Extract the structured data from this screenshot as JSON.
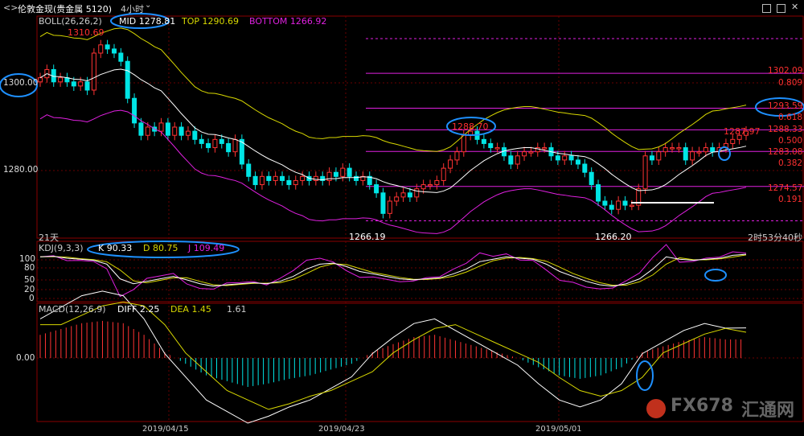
{
  "header": {
    "nav_icon": "back-forward-icon",
    "instrument": "伦敦金现(贵金属 5120)",
    "period": "4小时",
    "dropdown_icon": "chevron-down-icon"
  },
  "boll": {
    "label": "BOLL(26,26,2)",
    "mid": "MID 1278.81",
    "top": "TOP 1290.69",
    "bottom": "BOTTOM 1266.92"
  },
  "price_axis": {
    "ticks": [
      "1300.00",
      "1280.00"
    ]
  },
  "price_annotations": {
    "high": "1310.69",
    "peak_mid": "1288.70",
    "low1": "1266.19",
    "low2": "1266.20",
    "last": "1287.97",
    "range": "21天",
    "countdown": "2时53分40秒"
  },
  "fib_levels": [
    {
      "price": "1302.09",
      "ratio": "0.809"
    },
    {
      "price": "1293.59",
      "ratio": "0.618"
    },
    {
      "price": "1288.33",
      "ratio": "0.500"
    },
    {
      "price": "1283.08",
      "ratio": "0.382"
    },
    {
      "price": "1274.57",
      "ratio": "0.191"
    }
  ],
  "kdj": {
    "label": "KDJ(9,3,3)",
    "k": "K 90.33",
    "d": "D 80.75",
    "j": "J 109.49",
    "ticks": [
      "100",
      "80",
      "50",
      "20",
      "0"
    ]
  },
  "macd": {
    "label": "MACD(12,26,9)",
    "diff": "DIFF 2.25",
    "dea": "DEA 1.45",
    "value": "1.61",
    "zero_tick": "0.00"
  },
  "x_axis": {
    "dates": [
      "2019/04/15",
      "2019/04/23",
      "2019/05/01"
    ]
  },
  "watermark": {
    "brand": "FX678",
    "cn": "汇通网"
  },
  "colors": {
    "bull": "#ff3333",
    "bear": "#00e5e5",
    "mid": "#ffffff",
    "upper": "#d8d800",
    "lower": "#e020e0",
    "fib": "#e020e0",
    "annot": "#1e90ff"
  },
  "chart_data": {
    "type": "candlestick",
    "title": "伦敦金现(贵金属 5120) 4小时",
    "series": [
      {
        "name": "price_close",
        "values": [
          1301,
          1303,
          1300,
          1301,
          1300,
          1299,
          1300,
          1298,
          1307,
          1309,
          1308,
          1307,
          1305,
          1296,
          1290,
          1287,
          1289,
          1288,
          1290,
          1287,
          1289,
          1287,
          1288,
          1286,
          1285,
          1284,
          1286,
          1285,
          1283,
          1286,
          1280,
          1277,
          1275,
          1277,
          1276,
          1277,
          1276,
          1275,
          1276,
          1277,
          1276,
          1277,
          1276,
          1278,
          1277,
          1279,
          1277,
          1276,
          1277,
          1275,
          1273,
          1268,
          1271,
          1272,
          1273,
          1272,
          1274,
          1275,
          1275,
          1276,
          1279,
          1281,
          1283,
          1287,
          1288,
          1286,
          1285,
          1284,
          1284,
          1282,
          1280,
          1282,
          1283,
          1283,
          1284,
          1284,
          1282,
          1281,
          1282,
          1281,
          1280,
          1278,
          1275,
          1271,
          1270,
          1269,
          1271,
          1270,
          1270,
          1274,
          1282,
          1281,
          1283,
          1284,
          1284,
          1284,
          1281,
          1283,
          1283,
          1284,
          1283,
          1284,
          1285,
          1286,
          1287,
          1288
        ]
      },
      {
        "name": "K",
        "values": [
          85,
          86,
          82,
          80,
          78,
          70,
          40,
          30,
          35,
          40,
          45,
          38,
          30,
          25,
          28,
          30,
          32,
          30,
          35,
          45,
          60,
          70,
          72,
          65,
          55,
          50,
          45,
          40,
          38,
          40,
          42,
          50,
          60,
          75,
          80,
          85,
          82,
          80,
          70,
          55,
          45,
          35,
          28,
          25,
          30,
          40,
          60,
          85,
          80,
          78,
          80,
          82,
          88,
          90
        ]
      },
      {
        "name": "MACD",
        "values": [
          2.0,
          2.5,
          3.0,
          3.2,
          3.0,
          2.0,
          0.5,
          -0.5,
          -1.5,
          -2.0,
          -2.5,
          -2.2,
          -1.8,
          -1.5,
          -1.0,
          -0.5,
          0.5,
          1.2,
          1.8,
          2.0,
          1.5,
          1.0,
          0.5,
          0.0,
          -0.8,
          -1.5,
          -1.8,
          -1.5,
          -0.8,
          0.5,
          1.0,
          1.5,
          1.8,
          1.6,
          1.61
        ]
      }
    ],
    "annotations": [
      "1310.69",
      "1288.70",
      "1266.19",
      "1266.20",
      "1287.97"
    ],
    "ylim": [
      1262,
      1316
    ]
  }
}
